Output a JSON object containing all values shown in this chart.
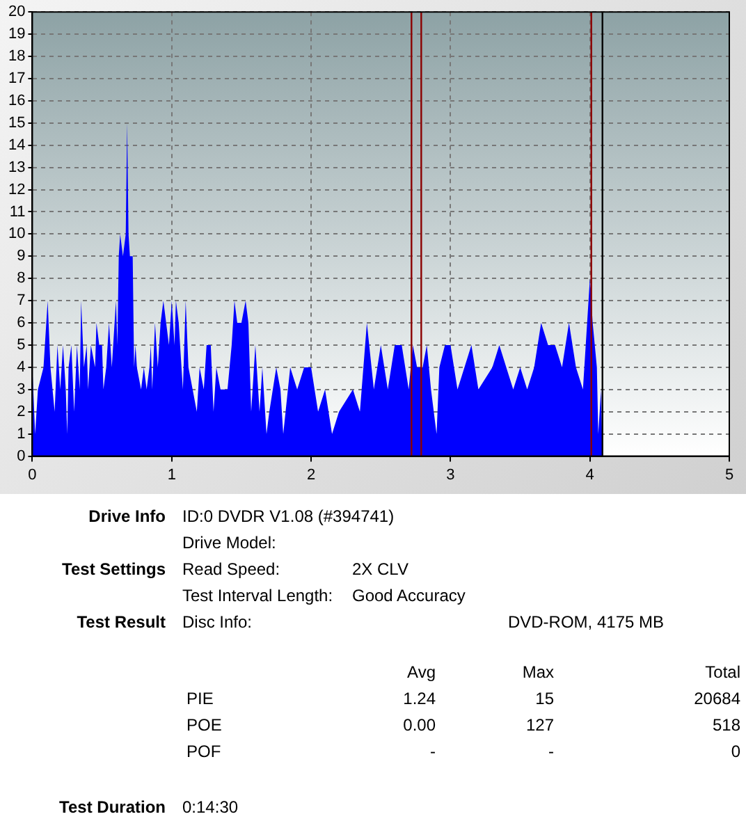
{
  "chart_data": {
    "type": "area",
    "legend": false,
    "grid": true,
    "marker": "none",
    "xlim": [
      0,
      5
    ],
    "xticks": [
      0,
      1,
      2,
      3,
      4,
      5
    ],
    "ylim": [
      0,
      20
    ],
    "yticks": [
      0,
      1,
      2,
      3,
      4,
      5,
      6,
      7,
      8,
      9,
      10,
      11,
      12,
      13,
      14,
      15,
      16,
      17,
      18,
      19,
      20
    ],
    "x": [
      0,
      0.02,
      0.04,
      0.08,
      0.11,
      0.13,
      0.16,
      0.18,
      0.2,
      0.22,
      0.24,
      0.25,
      0.26,
      0.28,
      0.3,
      0.32,
      0.34,
      0.35,
      0.37,
      0.39,
      0.4,
      0.42,
      0.45,
      0.46,
      0.48,
      0.5,
      0.51,
      0.53,
      0.55,
      0.57,
      0.58,
      0.6,
      0.61,
      0.62,
      0.63,
      0.65,
      0.67,
      0.68,
      0.69,
      0.7,
      0.72,
      0.73,
      0.74,
      0.75,
      0.78,
      0.8,
      0.82,
      0.84,
      0.85,
      0.86,
      0.88,
      0.9,
      0.92,
      0.94,
      0.96,
      0.98,
      1.0,
      1.02,
      1.03,
      1.05,
      1.08,
      1.1,
      1.12,
      1.15,
      1.18,
      1.2,
      1.23,
      1.25,
      1.28,
      1.3,
      1.32,
      1.35,
      1.4,
      1.43,
      1.45,
      1.47,
      1.5,
      1.53,
      1.55,
      1.57,
      1.6,
      1.63,
      1.65,
      1.68,
      1.7,
      1.75,
      1.78,
      1.8,
      1.85,
      1.9,
      1.95,
      2.0,
      2.05,
      2.1,
      2.15,
      2.2,
      2.3,
      2.35,
      2.4,
      2.45,
      2.5,
      2.55,
      2.6,
      2.65,
      2.7,
      2.73,
      2.76,
      2.8,
      2.83,
      2.86,
      2.9,
      2.92,
      2.96,
      3.0,
      3.05,
      3.1,
      3.15,
      3.2,
      3.3,
      3.35,
      3.4,
      3.45,
      3.5,
      3.55,
      3.6,
      3.65,
      3.7,
      3.75,
      3.8,
      3.85,
      3.9,
      3.95,
      4.0,
      4.02,
      4.05,
      4.06,
      4.08,
      4.09
    ],
    "series": [
      {
        "color": "#0000ff",
        "values": [
          4,
          1,
          3,
          4,
          7,
          4,
          2,
          5,
          3,
          5,
          3,
          1,
          4,
          5,
          2,
          5,
          3,
          7,
          4,
          5,
          3,
          5,
          4,
          6,
          5,
          5,
          3,
          4,
          6,
          4,
          5,
          7,
          5,
          9,
          10,
          9,
          10,
          15,
          10,
          9,
          9,
          4,
          5,
          4,
          3,
          4,
          3,
          4,
          5,
          3,
          6,
          4,
          6,
          7,
          6,
          5,
          7,
          5,
          7,
          6,
          3,
          7,
          4,
          3,
          2,
          4,
          3,
          5,
          5,
          2,
          4,
          3,
          3,
          5,
          7,
          6,
          6,
          7,
          6,
          2,
          5,
          2,
          4,
          1,
          2,
          4,
          3,
          1,
          4,
          3,
          4,
          4,
          2,
          3,
          1,
          2,
          3,
          2,
          6,
          3,
          5,
          3,
          5,
          5,
          3,
          5,
          4,
          4,
          5,
          3,
          1,
          4,
          5,
          5,
          3,
          4,
          5,
          3,
          4,
          5,
          4,
          3,
          4,
          3,
          4,
          6,
          5,
          5,
          4,
          6,
          4,
          3,
          8,
          6,
          4,
          1,
          3,
          0
        ]
      }
    ],
    "ref_lines": [
      {
        "axis": "x",
        "value": 2.72,
        "color": "#8b0000"
      },
      {
        "axis": "x",
        "value": 2.79,
        "color": "#8b0000"
      },
      {
        "axis": "x",
        "value": 4.01,
        "color": "#8b0000"
      },
      {
        "axis": "x",
        "value": 4.09,
        "color": "#000000"
      }
    ],
    "annotations": [
      "Drive Info",
      "ID:0 DVDR V1.08 (#394741)",
      "Drive Model:",
      "Test Settings",
      "Read Speed:",
      "2X CLV",
      "Test Interval Length:",
      "Good Accuracy",
      "Test Result",
      "Disc Info:",
      "DVD-ROM, 4175 MB",
      "Avg",
      "Max",
      "Total",
      "PIE",
      "1.24",
      "15",
      "20684",
      "POE",
      "0.00",
      "127",
      "518",
      "POF",
      "-",
      "-",
      "0",
      "Test Duration",
      "0:14:30"
    ]
  }
}
